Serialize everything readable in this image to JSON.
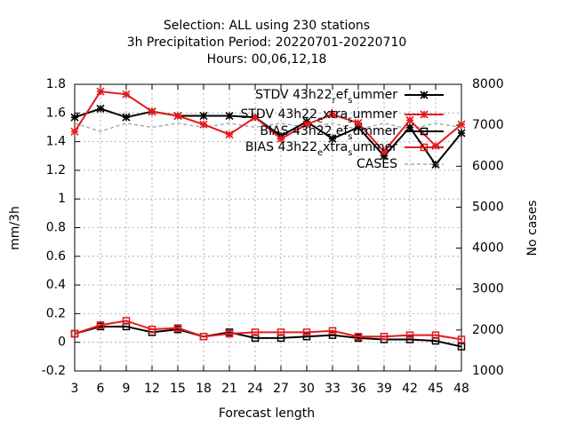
{
  "chart_data": {
    "type": "line",
    "title_lines": [
      "Selection: ALL using   230 stations",
      "3h Precipitation   Period: 20220701-20220710",
      "Hours:  00,06,12,18"
    ],
    "xlabel": "Forecast length",
    "ylabel": "mm/3h",
    "y2label": "No cases",
    "x": [
      3,
      6,
      9,
      12,
      15,
      18,
      21,
      24,
      27,
      30,
      33,
      36,
      39,
      42,
      45,
      48
    ],
    "ylim": [
      -0.2,
      1.8
    ],
    "y2lim": [
      1000,
      8000
    ],
    "yticks": [
      "-0.2",
      "0",
      "0.2",
      "0.4",
      "0.6",
      "0.8",
      "1",
      "1.2",
      "1.4",
      "1.6",
      "1.8"
    ],
    "y2ticks": [
      "1000",
      "2000",
      "3000",
      "4000",
      "5000",
      "6000",
      "7000",
      "8000"
    ],
    "grid": true,
    "legend_position": "top-right",
    "series": [
      {
        "name": "STDV 43h22_ref_summer",
        "legend_base": "STDV 43h22",
        "legend_sub1": "r",
        "legend_mid": "ef",
        "legend_sub2": "s",
        "legend_end": "ummer",
        "color": "#000000",
        "marker": "star",
        "axis": "y",
        "values": [
          1.57,
          1.63,
          1.57,
          1.61,
          1.58,
          1.58,
          1.58,
          1.57,
          1.44,
          1.54,
          1.42,
          1.5,
          1.3,
          1.5,
          1.24,
          1.46
        ]
      },
      {
        "name": "STDV 43h22_extra_summer",
        "legend_base": "STDV 43h22",
        "legend_sub1": "e",
        "legend_mid": "xtra",
        "legend_sub2": "s",
        "legend_end": "ummer",
        "color": "#e41a1c",
        "marker": "star",
        "axis": "y",
        "values": [
          1.47,
          1.75,
          1.73,
          1.61,
          1.58,
          1.52,
          1.45,
          1.57,
          1.42,
          1.52,
          1.59,
          1.53,
          1.33,
          1.55,
          1.37,
          1.52
        ]
      },
      {
        "name": "BIAS 43h22_ref_summer",
        "legend_base": "BIAS 43h22",
        "legend_sub1": "r",
        "legend_mid": "ef",
        "legend_sub2": "s",
        "legend_end": "ummer",
        "color": "#000000",
        "marker": "square",
        "axis": "y",
        "values": [
          0.06,
          0.11,
          0.11,
          0.07,
          0.09,
          0.04,
          0.07,
          0.03,
          0.03,
          0.04,
          0.05,
          0.03,
          0.02,
          0.02,
          0.01,
          -0.03
        ]
      },
      {
        "name": "BIAS 43h22_extra_summer",
        "legend_base": "BIAS 43h22",
        "legend_sub1": "e",
        "legend_mid": "xtra",
        "legend_sub2": "s",
        "legend_end": "ummer",
        "color": "#e41a1c",
        "marker": "square",
        "axis": "y",
        "values": [
          0.06,
          0.12,
          0.15,
          0.09,
          0.1,
          0.04,
          0.06,
          0.07,
          0.07,
          0.07,
          0.08,
          0.04,
          0.04,
          0.05,
          0.05,
          0.02
        ]
      },
      {
        "name": "CASES",
        "legend_base": "CASES",
        "legend_sub1": "",
        "legend_mid": "",
        "legend_sub2": "",
        "legend_end": "",
        "color": "#999999",
        "marker": "none",
        "dashed": true,
        "axis": "y2",
        "values": [
          7050,
          6850,
          7050,
          6950,
          7050,
          6950,
          7050,
          6950,
          7050,
          6950,
          7050,
          6900,
          7050,
          6900,
          7050,
          6950
        ]
      }
    ]
  }
}
